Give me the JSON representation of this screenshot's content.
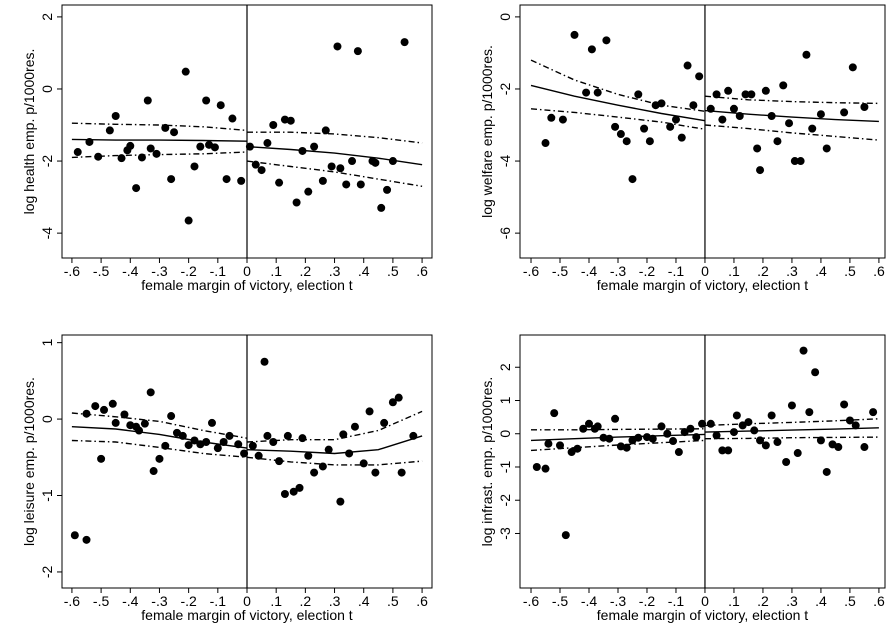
{
  "chart_data": [
    {
      "type": "scatter",
      "x_label": "female margin of victory, election t",
      "y_label": "log health emp. p/1000res.",
      "xlim": [
        -0.634,
        0.634
      ],
      "ylim": [
        -4.69,
        2.33
      ],
      "xticks": [
        {
          "value": -0.6,
          "label": "-.6"
        },
        {
          "value": -0.5,
          "label": "-.5"
        },
        {
          "value": -0.4,
          "label": "-.4"
        },
        {
          "value": -0.3,
          "label": "-.3"
        },
        {
          "value": -0.2,
          "label": "-.2"
        },
        {
          "value": -0.1,
          "label": "-.1"
        },
        0,
        {
          "value": 0.1,
          "label": ".1"
        },
        {
          "value": 0.2,
          "label": ".2"
        },
        {
          "value": 0.3,
          "label": ".3"
        },
        {
          "value": 0.4,
          "label": ".4"
        },
        {
          "value": 0.5,
          "label": ".5"
        },
        {
          "value": 0.6,
          "label": ".6"
        }
      ],
      "yticks": [
        -4,
        -2,
        0,
        2
      ],
      "cutoff": 0,
      "color": "#000000",
      "points": {
        "x": [
          -0.58,
          -0.54,
          -0.51,
          -0.47,
          -0.45,
          -0.43,
          -0.41,
          -0.4,
          -0.38,
          -0.36,
          -0.34,
          -0.33,
          -0.31,
          -0.28,
          -0.26,
          -0.25,
          -0.21,
          -0.2,
          -0.18,
          -0.16,
          -0.14,
          -0.13,
          -0.11,
          -0.09,
          -0.07,
          -0.05,
          -0.02,
          0.01,
          0.03,
          0.05,
          0.07,
          0.09,
          0.11,
          0.13,
          0.15,
          0.17,
          0.19,
          0.21,
          0.23,
          0.26,
          0.27,
          0.29,
          0.31,
          0.32,
          0.34,
          0.36,
          0.38,
          0.39,
          0.43,
          0.44,
          0.46,
          0.48,
          0.5,
          0.54
        ],
        "y": [
          -1.75,
          -1.47,
          -1.88,
          -1.15,
          -0.75,
          -1.92,
          -1.7,
          -1.58,
          -2.75,
          -1.9,
          -0.32,
          -1.65,
          -1.8,
          -1.08,
          -2.5,
          -1.2,
          0.48,
          -3.65,
          -2.15,
          -1.6,
          -0.32,
          -1.55,
          -1.62,
          -0.45,
          -2.5,
          -0.82,
          -2.55,
          -1.6,
          -2.1,
          -2.25,
          -1.5,
          -1.0,
          -2.6,
          -0.85,
          -0.88,
          -3.15,
          -1.72,
          -2.85,
          -1.6,
          -2.55,
          -1.15,
          -2.15,
          1.18,
          -2.2,
          -2.65,
          -2.0,
          1.05,
          -2.65,
          -2.0,
          -2.05,
          -3.3,
          -2.8,
          -2.0,
          1.3
        ]
      },
      "fit": {
        "x": [
          -0.6,
          -0.45,
          -0.3,
          -0.15,
          0,
          null,
          0,
          0.15,
          0.3,
          0.45,
          0.6
        ],
        "y": [
          -1.4,
          -1.42,
          -1.42,
          -1.43,
          -1.45,
          null,
          -1.6,
          -1.68,
          -1.78,
          -1.92,
          -2.1
        ]
      },
      "ci_upper": {
        "x": [
          -0.6,
          -0.45,
          -0.3,
          -0.15,
          0,
          null,
          0,
          0.15,
          0.3,
          0.45,
          0.6
        ],
        "y": [
          -0.95,
          -0.98,
          -1.0,
          -1.05,
          -1.15,
          null,
          -1.2,
          -1.2,
          -1.25,
          -1.35,
          -1.5
        ]
      },
      "ci_lower": {
        "x": [
          -0.6,
          -0.45,
          -0.3,
          -0.15,
          0,
          null,
          0,
          0.15,
          0.3,
          0.45,
          0.6
        ],
        "y": [
          -1.9,
          -1.85,
          -1.82,
          -1.8,
          -1.75,
          null,
          -2.0,
          -2.15,
          -2.3,
          -2.5,
          -2.7
        ]
      }
    },
    {
      "type": "scatter",
      "x_label": "female margin of victory, election t",
      "y_label": "log welfare emp. p/1000res.",
      "xlim": [
        -0.638,
        0.621
      ],
      "ylim": [
        -6.69,
        0.33
      ],
      "xticks": [
        {
          "value": -0.6,
          "label": "-.6"
        },
        {
          "value": -0.5,
          "label": "-.5"
        },
        {
          "value": -0.4,
          "label": "-.4"
        },
        {
          "value": -0.3,
          "label": "-.3"
        },
        {
          "value": -0.2,
          "label": "-.2"
        },
        {
          "value": -0.1,
          "label": "-.1"
        },
        0,
        {
          "value": 0.1,
          "label": ".1"
        },
        {
          "value": 0.2,
          "label": ".2"
        },
        {
          "value": 0.3,
          "label": ".3"
        },
        {
          "value": 0.4,
          "label": ".4"
        },
        {
          "value": 0.5,
          "label": ".5"
        },
        {
          "value": 0.6,
          "label": ".6"
        }
      ],
      "yticks": [
        -6,
        -4,
        -2,
        0
      ],
      "cutoff": 0,
      "color": "#000000",
      "points": {
        "x": [
          -0.55,
          -0.53,
          -0.49,
          -0.45,
          -0.41,
          -0.39,
          -0.37,
          -0.34,
          -0.31,
          -0.29,
          -0.27,
          -0.25,
          -0.23,
          -0.21,
          -0.19,
          -0.17,
          -0.15,
          -0.12,
          -0.1,
          -0.08,
          -0.06,
          -0.04,
          -0.02,
          0.02,
          0.04,
          0.06,
          0.08,
          0.1,
          0.12,
          0.14,
          0.16,
          0.18,
          0.19,
          0.21,
          0.23,
          0.25,
          0.27,
          0.29,
          0.31,
          0.33,
          0.35,
          0.37,
          0.4,
          0.42,
          0.48,
          0.51,
          0.55
        ],
        "y": [
          -3.5,
          -2.8,
          -2.85,
          -0.5,
          -2.1,
          -0.9,
          -2.1,
          -0.65,
          -3.05,
          -3.25,
          -3.45,
          -4.5,
          -2.15,
          -3.1,
          -3.45,
          -2.45,
          -2.4,
          -3.05,
          -2.85,
          -3.35,
          -1.35,
          -2.45,
          -1.65,
          -2.55,
          -2.15,
          -2.85,
          -2.05,
          -2.55,
          -2.75,
          -2.15,
          -2.15,
          -3.65,
          -4.25,
          -2.05,
          -2.75,
          -3.45,
          -1.9,
          -2.95,
          -4.0,
          -4.0,
          -1.05,
          -3.1,
          -2.7,
          -3.65,
          -2.65,
          -1.4,
          -2.5
        ]
      },
      "fit": {
        "x": [
          -0.6,
          -0.45,
          -0.3,
          -0.15,
          0,
          null,
          0,
          0.15,
          0.3,
          0.45,
          0.6
        ],
        "y": [
          -1.9,
          -2.2,
          -2.45,
          -2.68,
          -2.88,
          null,
          -2.6,
          -2.7,
          -2.78,
          -2.85,
          -2.9
        ]
      },
      "ci_upper": {
        "x": [
          -0.6,
          -0.45,
          -0.3,
          -0.15,
          0,
          null,
          0,
          0.15,
          0.3,
          0.45,
          0.6
        ],
        "y": [
          -1.2,
          -1.75,
          -2.15,
          -2.45,
          -2.62,
          null,
          -2.2,
          -2.3,
          -2.35,
          -2.38,
          -2.4
        ]
      },
      "ci_lower": {
        "x": [
          -0.6,
          -0.45,
          -0.3,
          -0.15,
          0,
          null,
          0,
          0.15,
          0.3,
          0.45,
          0.6
        ],
        "y": [
          -2.55,
          -2.65,
          -2.78,
          -2.92,
          -3.12,
          null,
          -3.0,
          -3.1,
          -3.22,
          -3.32,
          -3.42
        ]
      }
    },
    {
      "type": "scatter",
      "x_label": "female margin of victory, election t",
      "y_label": "log leisure emp. p/1000res.",
      "xlim": [
        -0.634,
        0.634
      ],
      "ylim": [
        -2.21,
        1.1
      ],
      "xticks": [
        {
          "value": -0.6,
          "label": "-.6"
        },
        {
          "value": -0.5,
          "label": "-.5"
        },
        {
          "value": -0.4,
          "label": "-.4"
        },
        {
          "value": -0.3,
          "label": "-.3"
        },
        {
          "value": -0.2,
          "label": "-.2"
        },
        {
          "value": -0.1,
          "label": "-.1"
        },
        0,
        {
          "value": 0.1,
          "label": ".1"
        },
        {
          "value": 0.2,
          "label": ".2"
        },
        {
          "value": 0.3,
          "label": ".3"
        },
        {
          "value": 0.4,
          "label": ".4"
        },
        {
          "value": 0.5,
          "label": ".5"
        },
        {
          "value": 0.6,
          "label": ".6"
        }
      ],
      "yticks": [
        -2,
        -1,
        0,
        1
      ],
      "cutoff": 0,
      "color": "#000000",
      "points": {
        "x": [
          -0.59,
          -0.55,
          -0.55,
          -0.52,
          -0.5,
          -0.49,
          -0.46,
          -0.45,
          -0.42,
          -0.4,
          -0.38,
          -0.37,
          -0.35,
          -0.33,
          -0.32,
          -0.3,
          -0.28,
          -0.26,
          -0.24,
          -0.22,
          -0.2,
          -0.18,
          -0.16,
          -0.14,
          -0.12,
          -0.1,
          -0.08,
          -0.06,
          -0.03,
          -0.01,
          0.02,
          0.04,
          0.06,
          0.07,
          0.09,
          0.11,
          0.13,
          0.14,
          0.16,
          0.18,
          0.19,
          0.21,
          0.23,
          0.26,
          0.28,
          0.32,
          0.33,
          0.35,
          0.37,
          0.4,
          0.42,
          0.44,
          0.47,
          0.5,
          0.52,
          0.53,
          0.57
        ],
        "y": [
          -1.52,
          -1.58,
          0.07,
          0.17,
          -0.52,
          0.12,
          0.2,
          -0.05,
          0.06,
          -0.08,
          -0.1,
          -0.15,
          -0.06,
          0.35,
          -0.68,
          -0.52,
          -0.35,
          0.04,
          -0.18,
          -0.22,
          -0.34,
          -0.28,
          -0.33,
          -0.3,
          -0.05,
          -0.38,
          -0.3,
          -0.22,
          -0.33,
          -0.45,
          -0.35,
          -0.48,
          0.75,
          -0.22,
          -0.3,
          -0.55,
          -0.98,
          -0.22,
          -0.95,
          -0.9,
          -0.25,
          -0.48,
          -0.7,
          -0.62,
          -0.4,
          -1.08,
          -0.2,
          -0.45,
          -0.1,
          -0.58,
          0.1,
          -0.7,
          -0.05,
          0.22,
          0.28,
          -0.7,
          -0.22
        ]
      },
      "fit": {
        "x": [
          -0.6,
          -0.45,
          -0.3,
          -0.15,
          0,
          null,
          0,
          0.15,
          0.3,
          0.45,
          0.6
        ],
        "y": [
          -0.1,
          -0.13,
          -0.2,
          -0.3,
          -0.38,
          null,
          -0.4,
          -0.42,
          -0.45,
          -0.4,
          -0.22
        ]
      },
      "ci_upper": {
        "x": [
          -0.6,
          -0.45,
          -0.3,
          -0.15,
          0,
          null,
          0,
          0.15,
          0.3,
          0.45,
          0.6
        ],
        "y": [
          0.08,
          0.03,
          -0.03,
          -0.15,
          -0.25,
          null,
          -0.3,
          -0.27,
          -0.27,
          -0.15,
          0.1
        ]
      },
      "ci_lower": {
        "x": [
          -0.6,
          -0.45,
          -0.3,
          -0.15,
          0,
          null,
          0,
          0.15,
          0.3,
          0.45,
          0.6
        ],
        "y": [
          -0.28,
          -0.3,
          -0.37,
          -0.45,
          -0.5,
          null,
          -0.5,
          -0.56,
          -0.6,
          -0.6,
          -0.55
        ]
      }
    },
    {
      "type": "scatter",
      "x_label": "female margin of victory, election t",
      "y_label": "log infrast. emp. p/1000res.",
      "xlim": [
        -0.638,
        0.621
      ],
      "ylim": [
        -4.64,
        2.97
      ],
      "xticks": [
        {
          "value": -0.6,
          "label": "-.6"
        },
        {
          "value": -0.5,
          "label": "-.5"
        },
        {
          "value": -0.4,
          "label": "-.4"
        },
        {
          "value": -0.3,
          "label": "-.3"
        },
        {
          "value": -0.2,
          "label": "-.2"
        },
        {
          "value": -0.1,
          "label": "-.1"
        },
        0,
        {
          "value": 0.1,
          "label": ".1"
        },
        {
          "value": 0.2,
          "label": ".2"
        },
        {
          "value": 0.3,
          "label": ".3"
        },
        {
          "value": 0.4,
          "label": ".4"
        },
        {
          "value": 0.5,
          "label": ".5"
        },
        {
          "value": 0.6,
          "label": ".6"
        }
      ],
      "yticks": [
        -3,
        -2,
        -1,
        0,
        1,
        2
      ],
      "cutoff": 0,
      "color": "#000000",
      "points": {
        "x": [
          -0.58,
          -0.55,
          -0.54,
          -0.52,
          -0.5,
          -0.48,
          -0.46,
          -0.44,
          -0.42,
          -0.4,
          -0.38,
          -0.37,
          -0.35,
          -0.33,
          -0.31,
          -0.29,
          -0.27,
          -0.25,
          -0.23,
          -0.2,
          -0.18,
          -0.15,
          -0.13,
          -0.11,
          -0.09,
          -0.07,
          -0.05,
          -0.03,
          -0.01,
          0.02,
          0.04,
          0.06,
          0.08,
          0.1,
          0.11,
          0.13,
          0.15,
          0.17,
          0.19,
          0.21,
          0.23,
          0.25,
          0.28,
          0.3,
          0.32,
          0.34,
          0.36,
          0.38,
          0.4,
          0.42,
          0.44,
          0.46,
          0.48,
          0.5,
          0.52,
          0.55,
          0.58
        ],
        "y": [
          -1.0,
          -1.05,
          -0.3,
          0.62,
          -0.35,
          -3.05,
          -0.55,
          -0.45,
          0.15,
          0.3,
          0.15,
          0.22,
          -0.12,
          -0.15,
          0.45,
          -0.38,
          -0.42,
          -0.2,
          -0.12,
          -0.1,
          -0.15,
          0.22,
          0.0,
          -0.22,
          -0.55,
          0.05,
          0.15,
          -0.1,
          0.3,
          0.3,
          -0.05,
          -0.5,
          -0.5,
          0.05,
          0.55,
          0.25,
          0.35,
          0.1,
          -0.2,
          -0.35,
          0.55,
          -0.25,
          -0.85,
          0.85,
          -0.58,
          2.5,
          0.65,
          1.85,
          -0.2,
          -1.15,
          -0.32,
          -0.4,
          0.88,
          0.4,
          0.25,
          -0.4,
          0.65
        ]
      },
      "fit": {
        "x": [
          -0.6,
          -0.45,
          -0.3,
          -0.15,
          0,
          null,
          0,
          0.15,
          0.3,
          0.45,
          0.6
        ],
        "y": [
          -0.2,
          -0.15,
          -0.1,
          -0.06,
          -0.02,
          null,
          0.05,
          0.08,
          0.11,
          0.14,
          0.18
        ]
      },
      "ci_upper": {
        "x": [
          -0.6,
          -0.45,
          -0.3,
          -0.15,
          0,
          null,
          0,
          0.15,
          0.3,
          0.45,
          0.6
        ],
        "y": [
          0.12,
          0.12,
          0.13,
          0.14,
          0.15,
          null,
          0.25,
          0.3,
          0.34,
          0.39,
          0.45
        ]
      },
      "ci_lower": {
        "x": [
          -0.6,
          -0.45,
          -0.3,
          -0.15,
          0,
          null,
          0,
          0.15,
          0.3,
          0.45,
          0.6
        ],
        "y": [
          -0.5,
          -0.42,
          -0.34,
          -0.27,
          -0.2,
          null,
          -0.15,
          -0.14,
          -0.12,
          -0.11,
          -0.1
        ]
      }
    }
  ]
}
